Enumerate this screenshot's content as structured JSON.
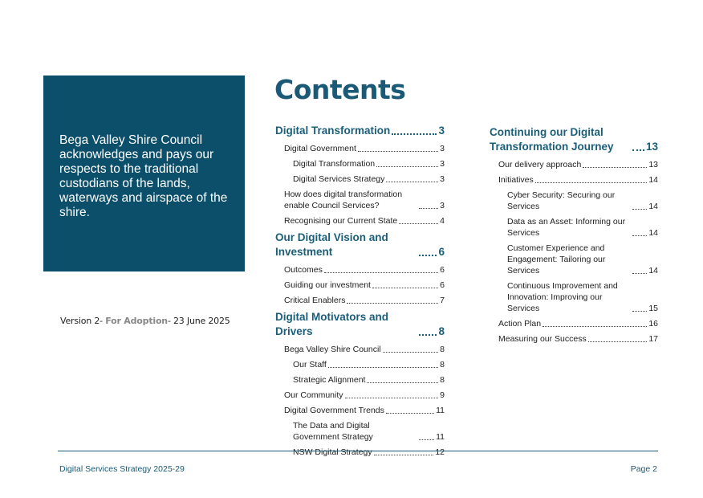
{
  "acknowledgement": "Bega Valley Shire Council acknowledges and pays our respects to the traditional custodians of the lands, waterways and airspace of the shire.",
  "version": {
    "prefix": "Version 2- ",
    "status": "For Adoption",
    "suffix": "- 23 June 2025"
  },
  "title": "Contents",
  "toc_col1": [
    {
      "text": "Digital Transformation",
      "page": "3",
      "level": 1
    },
    {
      "text": "Digital Government",
      "page": "3",
      "level": 2
    },
    {
      "text": "Digital Transformation",
      "page": "3",
      "level": 3
    },
    {
      "text": "Digital Services Strategy",
      "page": "3",
      "level": 3
    },
    {
      "text": "How does digital transformation enable Council Services?",
      "page": "3",
      "level": 2
    },
    {
      "text": "Recognising our Current State",
      "page": "4",
      "level": 2
    },
    {
      "text": "Our Digital Vision and Investment",
      "page": "6",
      "level": 1
    },
    {
      "text": "Outcomes",
      "page": "6",
      "level": 2
    },
    {
      "text": "Guiding our investment",
      "page": "6",
      "level": 2
    },
    {
      "text": "Critical Enablers",
      "page": "7",
      "level": 2
    },
    {
      "text": "Digital Motivators and Drivers",
      "page": "8",
      "level": 1
    },
    {
      "text": "Bega Valley Shire Council",
      "page": "8",
      "level": 2
    },
    {
      "text": "Our Staff",
      "page": "8",
      "level": 3
    },
    {
      "text": "Strategic Alignment",
      "page": "8",
      "level": 3
    },
    {
      "text": "Our Community",
      "page": "9",
      "level": 2
    },
    {
      "text": "Digital Government Trends",
      "page": "11",
      "level": 2
    },
    {
      "text": "The Data and Digital Government Strategy",
      "page": "11",
      "level": 3
    },
    {
      "text": "NSW Digital Strategy",
      "page": "12",
      "level": 3
    }
  ],
  "toc_col2": [
    {
      "text": "Continuing our Digital Transformation Journey",
      "page": "13",
      "level": 1
    },
    {
      "text": "Our delivery approach",
      "page": "13",
      "level": 2
    },
    {
      "text": "Initiatives",
      "page": "14",
      "level": 2
    },
    {
      "text": "Cyber Security: Securing our Services",
      "page": "14",
      "level": 3
    },
    {
      "text": "Data as an Asset: Informing our Services",
      "page": "14",
      "level": 3
    },
    {
      "text": "Customer Experience and Engagement: Tailoring our Services",
      "page": "14",
      "level": 3
    },
    {
      "text": "Continuous Improvement and Innovation: Improving our Services",
      "page": "15",
      "level": 3
    },
    {
      "text": "Action Plan",
      "page": "16",
      "level": 2
    },
    {
      "text": "Measuring our Success",
      "page": "17",
      "level": 2
    }
  ],
  "footer": {
    "left": "Digital Services Strategy 2025-29",
    "right": "Page 2"
  }
}
